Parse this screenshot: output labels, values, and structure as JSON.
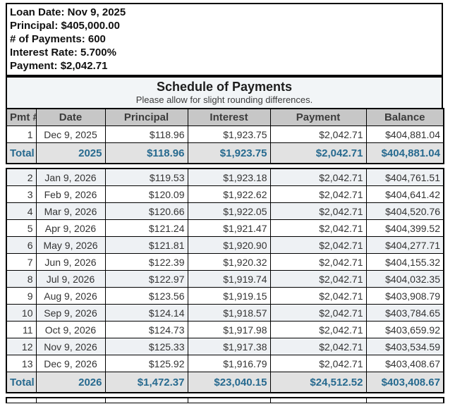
{
  "loan_info": {
    "lines": [
      "Loan Date: Nov 9, 2025",
      "Principal: $405,000.00",
      "# of Payments: 600",
      "Interest Rate: 5.700%",
      "Payment: $2,042.71"
    ]
  },
  "schedule": {
    "title": "Schedule of Payments",
    "subtitle": "Please allow for slight rounding differences.",
    "columns": [
      "Pmt #",
      "Date",
      "Principal",
      "Interest",
      "Payment",
      "Balance"
    ],
    "sections": [
      {
        "rows": [
          {
            "pmt": "1",
            "date": "Dec 9, 2025",
            "principal": "$118.96",
            "interest": "$1,923.75",
            "payment": "$2,042.71",
            "balance": "$404,881.04"
          }
        ],
        "total": {
          "label": "Total",
          "year": "2025",
          "principal": "$118.96",
          "interest": "$1,923.75",
          "payment": "$2,042.71",
          "balance": "$404,881.04"
        }
      },
      {
        "rows": [
          {
            "pmt": "2",
            "date": "Jan 9, 2026",
            "principal": "$119.53",
            "interest": "$1,923.18",
            "payment": "$2,042.71",
            "balance": "$404,761.51"
          },
          {
            "pmt": "3",
            "date": "Feb 9, 2026",
            "principal": "$120.09",
            "interest": "$1,922.62",
            "payment": "$2,042.71",
            "balance": "$404,641.42"
          },
          {
            "pmt": "4",
            "date": "Mar 9, 2026",
            "principal": "$120.66",
            "interest": "$1,922.05",
            "payment": "$2,042.71",
            "balance": "$404,520.76"
          },
          {
            "pmt": "5",
            "date": "Apr 9, 2026",
            "principal": "$121.24",
            "interest": "$1,921.47",
            "payment": "$2,042.71",
            "balance": "$404,399.52"
          },
          {
            "pmt": "6",
            "date": "May 9, 2026",
            "principal": "$121.81",
            "interest": "$1,920.90",
            "payment": "$2,042.71",
            "balance": "$404,277.71"
          },
          {
            "pmt": "7",
            "date": "Jun 9, 2026",
            "principal": "$122.39",
            "interest": "$1,920.32",
            "payment": "$2,042.71",
            "balance": "$404,155.32"
          },
          {
            "pmt": "8",
            "date": "Jul 9, 2026",
            "principal": "$122.97",
            "interest": "$1,919.74",
            "payment": "$2,042.71",
            "balance": "$404,032.35"
          },
          {
            "pmt": "9",
            "date": "Aug 9, 2026",
            "principal": "$123.56",
            "interest": "$1,919.15",
            "payment": "$2,042.71",
            "balance": "$403,908.79"
          },
          {
            "pmt": "10",
            "date": "Sep 9, 2026",
            "principal": "$124.14",
            "interest": "$1,918.57",
            "payment": "$2,042.71",
            "balance": "$403,784.65"
          },
          {
            "pmt": "11",
            "date": "Oct 9, 2026",
            "principal": "$124.73",
            "interest": "$1,917.98",
            "payment": "$2,042.71",
            "balance": "$403,659.92"
          },
          {
            "pmt": "12",
            "date": "Nov 9, 2026",
            "principal": "$125.33",
            "interest": "$1,917.38",
            "payment": "$2,042.71",
            "balance": "$403,534.59"
          },
          {
            "pmt": "13",
            "date": "Dec 9, 2026",
            "principal": "$125.92",
            "interest": "$1,916.79",
            "payment": "$2,042.71",
            "balance": "$403,408.67"
          }
        ],
        "total": {
          "label": "Total",
          "year": "2026",
          "principal": "$1,472.37",
          "interest": "$23,040.15",
          "payment": "$24,512.52",
          "balance": "$403,408.67"
        }
      }
    ]
  },
  "colors": {
    "accent_total_text": "#276a8f",
    "header_bg": "#c7c7c7",
    "total_row_bg": "#e2e2e2",
    "shaded_row_bg": "#eef1f4",
    "title_band_bg": "#f2f5f7",
    "border": "#000000"
  }
}
